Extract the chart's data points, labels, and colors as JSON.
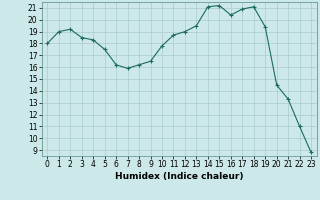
{
  "x": [
    0,
    1,
    2,
    3,
    4,
    5,
    6,
    7,
    8,
    9,
    10,
    11,
    12,
    13,
    14,
    15,
    16,
    17,
    18,
    19,
    20,
    21,
    22,
    23
  ],
  "y": [
    18.0,
    19.0,
    19.2,
    18.5,
    18.3,
    17.5,
    16.2,
    15.9,
    16.2,
    16.5,
    17.8,
    18.7,
    19.0,
    19.5,
    21.1,
    21.2,
    20.4,
    20.9,
    21.1,
    19.4,
    14.5,
    13.3,
    11.0,
    8.8
  ],
  "line_color": "#1a6b5a",
  "marker": "+",
  "marker_size": 3,
  "bg_color": "#cde8e8",
  "grid_color": "#aacccc",
  "xlabel": "Humidex (Indice chaleur)",
  "ylim": [
    8.5,
    21.5
  ],
  "xlim": [
    -0.5,
    23.5
  ],
  "yticks": [
    9,
    10,
    11,
    12,
    13,
    14,
    15,
    16,
    17,
    18,
    19,
    20,
    21
  ],
  "xticks": [
    0,
    1,
    2,
    3,
    4,
    5,
    6,
    7,
    8,
    9,
    10,
    11,
    12,
    13,
    14,
    15,
    16,
    17,
    18,
    19,
    20,
    21,
    22,
    23
  ],
  "label_fontsize": 6.5,
  "tick_fontsize": 5.5
}
